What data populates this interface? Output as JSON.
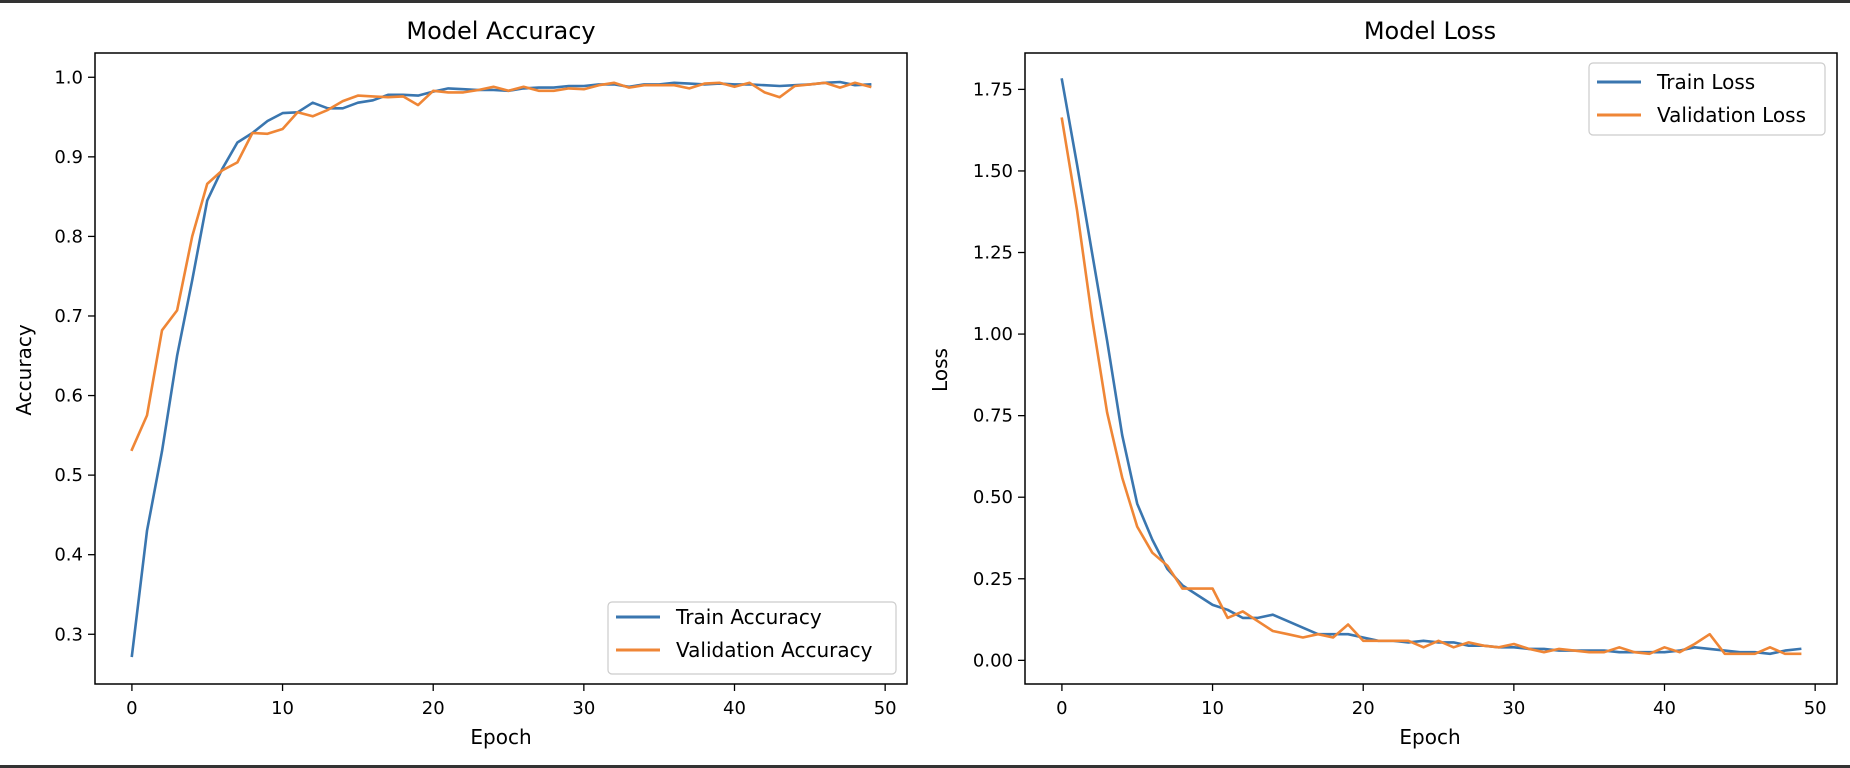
{
  "chart_data": [
    {
      "type": "line",
      "title": "Model Accuracy",
      "xlabel": "Epoch",
      "ylabel": "Accuracy",
      "xlim": [
        -2.45,
        51.45
      ],
      "ylim": [
        0.2375,
        1.0305
      ],
      "x_ticks": [
        0,
        10,
        20,
        30,
        40,
        50
      ],
      "y_ticks": [
        0.3,
        0.4,
        0.5,
        0.6,
        0.7,
        0.8,
        0.9,
        1.0
      ],
      "x_tick_labels": [
        "0",
        "10",
        "20",
        "30",
        "40",
        "50"
      ],
      "y_tick_labels": [
        "0.3",
        "0.4",
        "0.5",
        "0.6",
        "0.7",
        "0.8",
        "0.9",
        "1.0"
      ],
      "legend_position": "lower right",
      "grid": false,
      "x": [
        0,
        1,
        2,
        3,
        4,
        5,
        6,
        7,
        8,
        9,
        10,
        11,
        12,
        13,
        14,
        15,
        16,
        17,
        18,
        19,
        20,
        21,
        22,
        23,
        24,
        25,
        26,
        27,
        28,
        29,
        30,
        31,
        32,
        33,
        34,
        35,
        36,
        37,
        38,
        39,
        40,
        41,
        42,
        43,
        44,
        45,
        46,
        47,
        48,
        49
      ],
      "series": [
        {
          "name": "Train Accuracy",
          "color": "#3a76af",
          "values": [
            0.273,
            0.43,
            0.53,
            0.65,
            0.745,
            0.845,
            0.885,
            0.918,
            0.93,
            0.945,
            0.955,
            0.956,
            0.968,
            0.961,
            0.961,
            0.968,
            0.971,
            0.978,
            0.978,
            0.977,
            0.982,
            0.986,
            0.985,
            0.984,
            0.984,
            0.983,
            0.986,
            0.987,
            0.987,
            0.989,
            0.989,
            0.991,
            0.991,
            0.988,
            0.991,
            0.991,
            0.993,
            0.992,
            0.991,
            0.992,
            0.991,
            0.991,
            0.99,
            0.989,
            0.99,
            0.991,
            0.993,
            0.994,
            0.99,
            0.991
          ]
        },
        {
          "name": "Validation Accuracy",
          "color": "#ef8636",
          "values": [
            0.532,
            0.575,
            0.682,
            0.707,
            0.8,
            0.866,
            0.883,
            0.893,
            0.93,
            0.929,
            0.935,
            0.956,
            0.951,
            0.959,
            0.97,
            0.977,
            0.976,
            0.975,
            0.976,
            0.965,
            0.983,
            0.981,
            0.981,
            0.984,
            0.988,
            0.983,
            0.988,
            0.983,
            0.983,
            0.986,
            0.985,
            0.99,
            0.993,
            0.987,
            0.99,
            0.99,
            0.99,
            0.986,
            0.992,
            0.993,
            0.988,
            0.993,
            0.981,
            0.975,
            0.989,
            0.991,
            0.993,
            0.987,
            0.993,
            0.988
          ]
        }
      ]
    },
    {
      "type": "line",
      "title": "Model Loss",
      "xlabel": "Epoch",
      "ylabel": "Loss",
      "xlim": [
        -2.45,
        51.45
      ],
      "ylim": [
        -0.0725,
        1.8615
      ],
      "x_ticks": [
        0,
        10,
        20,
        30,
        40,
        50
      ],
      "y_ticks": [
        0.0,
        0.25,
        0.5,
        0.75,
        1.0,
        1.25,
        1.5,
        1.75
      ],
      "x_tick_labels": [
        "0",
        "10",
        "20",
        "30",
        "40",
        "50"
      ],
      "y_tick_labels": [
        "0.00",
        "0.25",
        "0.50",
        "0.75",
        "1.00",
        "1.25",
        "1.50",
        "1.75"
      ],
      "legend_position": "upper right",
      "grid": false,
      "x": [
        0,
        1,
        2,
        3,
        4,
        5,
        6,
        7,
        8,
        9,
        10,
        11,
        12,
        13,
        14,
        15,
        16,
        17,
        18,
        19,
        20,
        21,
        22,
        23,
        24,
        25,
        26,
        27,
        28,
        29,
        30,
        31,
        32,
        33,
        34,
        35,
        36,
        37,
        38,
        39,
        40,
        41,
        42,
        43,
        44,
        45,
        46,
        47,
        48,
        49
      ],
      "series": [
        {
          "name": "Train Loss",
          "color": "#3a76af",
          "values": [
            1.78,
            1.52,
            1.25,
            0.98,
            0.69,
            0.48,
            0.37,
            0.28,
            0.23,
            0.2,
            0.17,
            0.155,
            0.13,
            0.13,
            0.14,
            0.12,
            0.1,
            0.08,
            0.08,
            0.08,
            0.07,
            0.06,
            0.06,
            0.055,
            0.06,
            0.055,
            0.055,
            0.045,
            0.045,
            0.04,
            0.04,
            0.035,
            0.035,
            0.03,
            0.03,
            0.03,
            0.03,
            0.025,
            0.025,
            0.025,
            0.025,
            0.03,
            0.04,
            0.035,
            0.03,
            0.025,
            0.025,
            0.02,
            0.03,
            0.035
          ]
        },
        {
          "name": "Validation Loss",
          "color": "#ef8636",
          "values": [
            1.66,
            1.38,
            1.05,
            0.76,
            0.56,
            0.41,
            0.33,
            0.29,
            0.22,
            0.22,
            0.22,
            0.13,
            0.15,
            0.12,
            0.09,
            0.08,
            0.07,
            0.08,
            0.07,
            0.11,
            0.06,
            0.06,
            0.06,
            0.06,
            0.04,
            0.06,
            0.04,
            0.055,
            0.045,
            0.04,
            0.05,
            0.035,
            0.025,
            0.035,
            0.03,
            0.025,
            0.025,
            0.04,
            0.025,
            0.02,
            0.04,
            0.025,
            0.05,
            0.08,
            0.02,
            0.02,
            0.02,
            0.04,
            0.02,
            0.02
          ]
        }
      ]
    }
  ]
}
